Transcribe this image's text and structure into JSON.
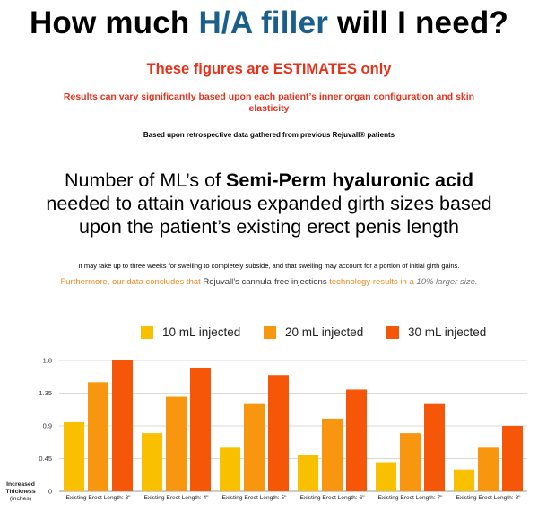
{
  "title": {
    "before": "How much ",
    "highlight": "H/A filler",
    "after": " will I need?"
  },
  "estimate_note": "These figures are ESTIMATES only",
  "variance_note": "Results can vary significantly based upon each patient’s inner organ configuration and skin elasticity",
  "basis_note": "Based upon retrospective data gathered from previous Rejuvall® patients",
  "headline": {
    "line1_pre": "Number of ML’s of ",
    "line1_bold": "Semi-Perm hyaluronic acid",
    "line2": "needed to attain various expanded girth sizes based",
    "line3": "upon the patient’s existing erect penis length"
  },
  "swelling_note": "It may take up to three weeks for swelling to completely subside, and that swelling may account for a portion of initial girth gains.",
  "furthermore": {
    "part1": "Furthermore, our data concludes that ",
    "part2": "Rejuvall’s cannula-free injections",
    "part3": " technology results in a ",
    "part4": "10% larger size."
  },
  "colors": {
    "accent_title": "#1a5f8c",
    "warning": "#e8311a",
    "series_10": "#f9c000",
    "series_20": "#f8960f",
    "series_30": "#f65608"
  },
  "chart_data": {
    "type": "bar",
    "title": "",
    "ylabel": "Increased Thickness",
    "ylabel_unit": "(inches)",
    "xlabel": "",
    "ylim": [
      0,
      1.8
    ],
    "yticks": [
      "0",
      "0.45",
      "0.9",
      "1.35",
      "1.8"
    ],
    "grid": true,
    "legend_position": "top",
    "categories": [
      "Existing Erect Length: 3\"",
      "Existing Erect Length: 4\"",
      "Existing Erect Length: 5\"",
      "Existing Erect Length: 6\"",
      "Existing Erect Length: 7\"",
      "Existing Erect Length: 8\""
    ],
    "series": [
      {
        "name": "10 mL injected",
        "values": [
          0.95,
          0.8,
          0.6,
          0.5,
          0.4,
          0.3
        ]
      },
      {
        "name": "20 mL injected",
        "values": [
          1.5,
          1.3,
          1.2,
          1.0,
          0.8,
          0.6
        ]
      },
      {
        "name": "30 mL injected",
        "values": [
          1.8,
          1.7,
          1.6,
          1.4,
          1.2,
          0.9
        ]
      }
    ]
  }
}
